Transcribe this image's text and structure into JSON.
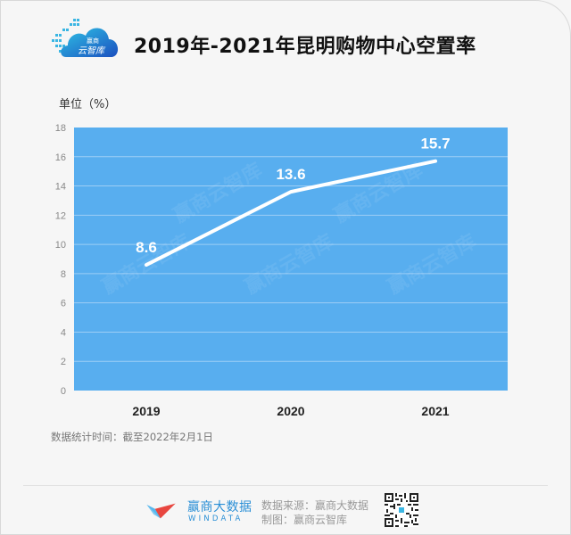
{
  "header": {
    "logo_text_top": "赢商",
    "logo_text_bottom": "云智库",
    "title": "2019年-2021年昆明购物中心空置率"
  },
  "chart_data": {
    "type": "line",
    "title": "2019年-2021年昆明购物中心空置率",
    "ylabel": "单位（%）",
    "xlabel": "",
    "categories": [
      "2019",
      "2020",
      "2021"
    ],
    "values": [
      8.6,
      13.6,
      15.7
    ],
    "data_labels": [
      "8.6",
      "13.6",
      "15.7"
    ],
    "ylim": [
      0,
      18
    ],
    "yticks": [
      "0",
      "2",
      "4",
      "6",
      "8",
      "10",
      "12",
      "14",
      "16",
      "18"
    ],
    "grid": true,
    "legend": null,
    "plot_background": "#58aeef",
    "line_color": "#ffffff",
    "watermark": "赢商云智库"
  },
  "notes": {
    "stat_time": "数据统计时间：截至2022年2月1日"
  },
  "footer": {
    "brand_cn": "赢商大数据",
    "brand_en": "WINDATA",
    "source": "数据来源：赢商大数据",
    "maker": "制图：赢商云智库"
  },
  "colors": {
    "plot_fill": "#58aeef",
    "brand_blue": "#2a8fd6",
    "brand_red": "#e8463f",
    "background": "#f6f6f6"
  }
}
